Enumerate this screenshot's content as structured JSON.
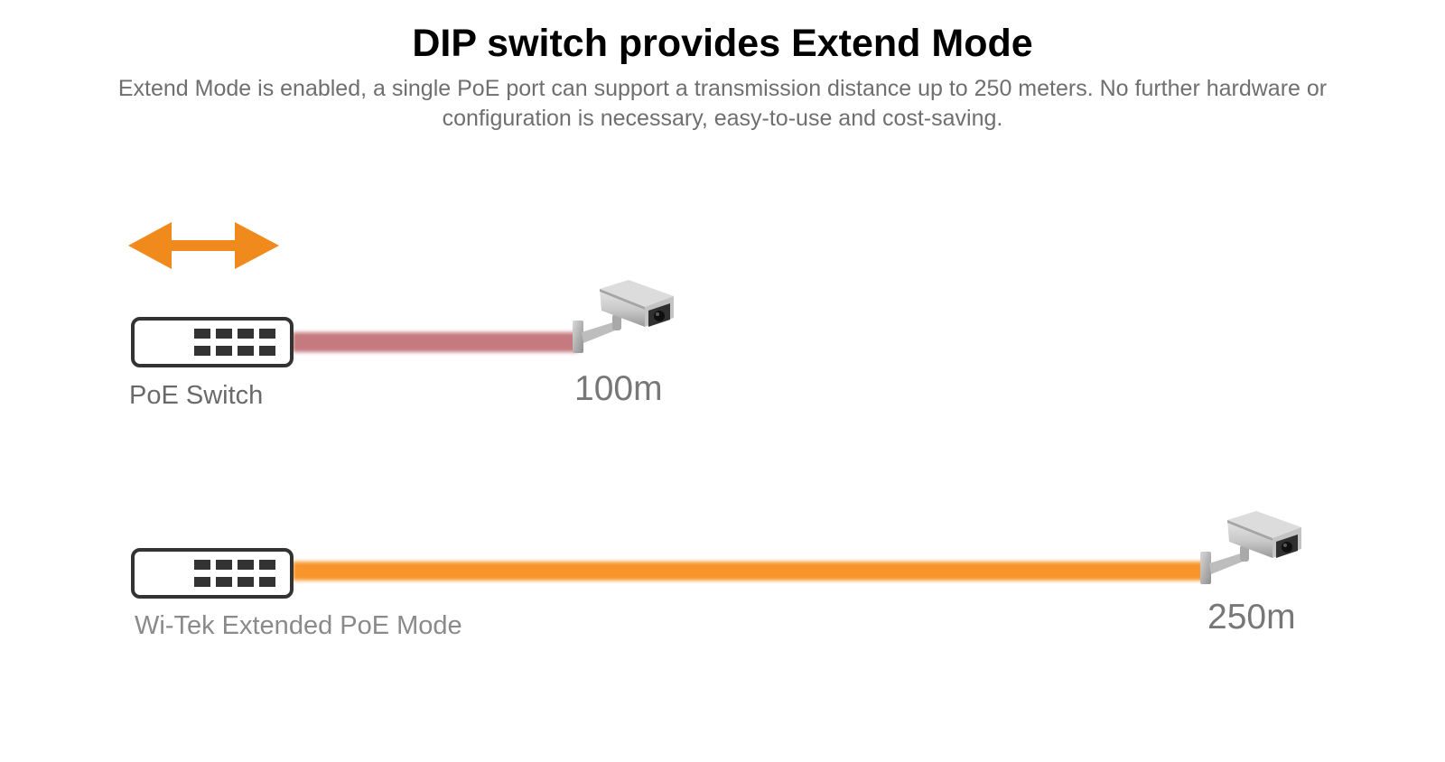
{
  "header": {
    "title": "DIP switch provides Extend Mode",
    "description": "Extend Mode is enabled, a single PoE port can support a transmission distance up to 250 meters. No further hardware or configuration is necessary, easy-to-use and cost-saving."
  },
  "diagram": {
    "standard": {
      "device_label": "PoE Switch",
      "distance_label": "100m",
      "distance_m": 100,
      "cable_color": "#c47a7e",
      "icons": [
        "bidirectional-arrow-icon",
        "switch-icon",
        "cctv-camera-icon"
      ]
    },
    "extended": {
      "device_label": "Wi-Tek Extended PoE Mode",
      "distance_label": "250m",
      "distance_m": 250,
      "cable_color": "#f7952a",
      "icons": [
        "switch-icon",
        "cctv-camera-icon"
      ]
    },
    "accent_color": "#f08a1c"
  }
}
